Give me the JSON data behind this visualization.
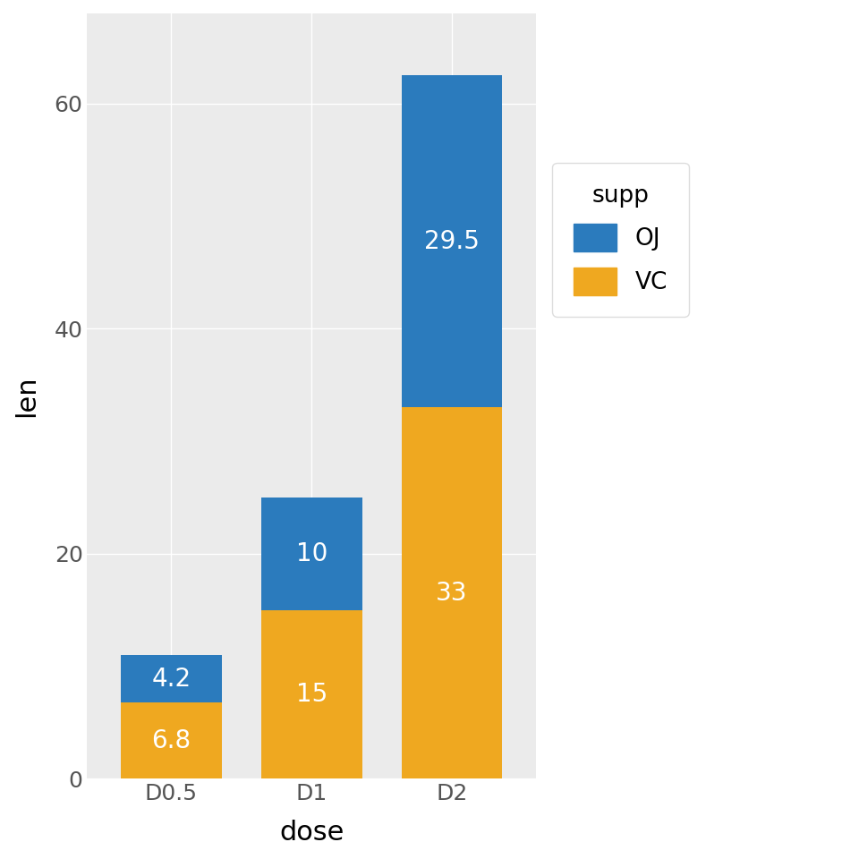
{
  "categories": [
    "D0.5",
    "D1",
    "D2"
  ],
  "vc_values": [
    6.8,
    15.0,
    33.0
  ],
  "oj_values": [
    4.2,
    10.0,
    29.5
  ],
  "vc_color": "#EFA820",
  "oj_color": "#2B7BBD",
  "title": "",
  "xlabel": "dose",
  "ylabel": "len",
  "legend_title": "supp",
  "ylim": [
    0,
    68
  ],
  "yticks": [
    0,
    20,
    40,
    60
  ],
  "bar_width": 0.72,
  "background_color": "#FFFFFF",
  "panel_background": "#EBEBEB",
  "grid_color": "#FFFFFF",
  "label_fontsize": 22,
  "tick_fontsize": 18,
  "legend_fontsize": 19,
  "legend_title_fontsize": 19,
  "value_fontsize": 20,
  "vc_labels": [
    "6.8",
    "15",
    "33"
  ],
  "oj_labels": [
    "4.2",
    "10",
    "29.5"
  ]
}
